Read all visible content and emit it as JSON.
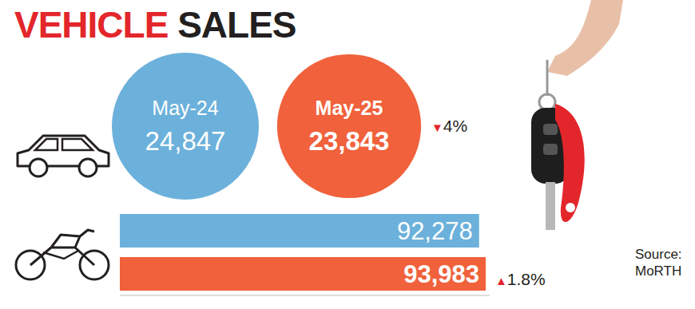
{
  "title": "VEHICLE SALES",
  "source": "Source: MoRTH",
  "chart_data": [
    {
      "type": "bubble",
      "categories": [
        "May-24",
        "May-25"
      ],
      "values": [
        24847,
        23843
      ],
      "value_labels": [
        "24,847",
        "23,843"
      ],
      "colors": [
        "#6cb1db",
        "#f0613c"
      ],
      "data_labels": true,
      "annotations": [
        "▼4%"
      ]
    },
    {
      "type": "bar",
      "orientation": "horizontal",
      "categories": [
        null,
        null
      ],
      "values": [
        92278,
        93983
      ],
      "value_labels": [
        "92,278",
        "93,983"
      ],
      "colors": [
        "#6cb1db",
        "#f0613c"
      ],
      "xlim": [
        0,
        95000
      ],
      "xticks": [
        0,
        95000
      ],
      "tick_labels": false,
      "data_labels": true,
      "annotations": [
        "▲1.8%"
      ]
    }
  ]
}
